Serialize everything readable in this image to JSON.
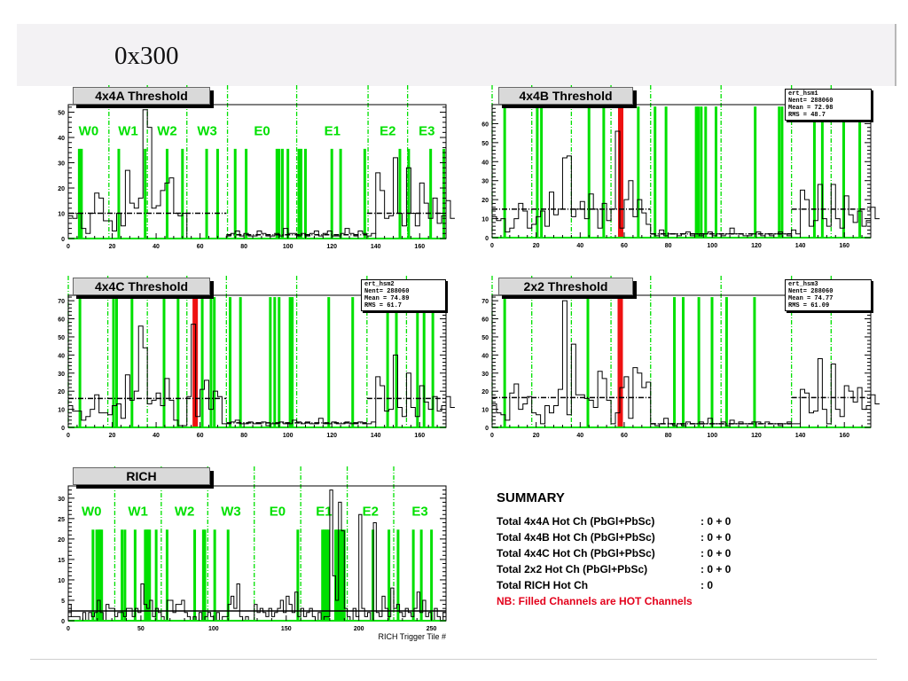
{
  "header": {
    "title": "0x300"
  },
  "colors": {
    "hot": "#00e000",
    "red": "#ee1111",
    "line": "#000000"
  },
  "chart_data": [
    {
      "id": "a",
      "type": "histogram",
      "title": "4x4A Threshold",
      "xlim": [
        0,
        172
      ],
      "ylim": [
        0,
        53
      ],
      "xticks": [
        0,
        20,
        40,
        60,
        80,
        100,
        120,
        140,
        160
      ],
      "yticks": [
        0,
        10,
        20,
        30,
        40,
        50
      ],
      "bin_width": 2,
      "values": [
        9,
        8,
        10,
        4,
        2,
        10,
        18,
        16,
        7,
        7,
        3,
        10,
        5,
        27,
        14,
        12,
        16,
        51,
        44,
        12,
        13,
        19,
        22,
        24,
        10,
        9,
        10,
        0,
        0,
        0,
        0,
        0,
        0,
        0,
        0,
        0,
        1,
        2,
        3,
        1,
        2,
        1,
        1,
        3,
        2,
        1,
        1,
        2,
        1,
        4,
        2,
        2,
        1,
        2,
        1,
        2,
        3,
        1,
        2,
        3,
        1,
        1,
        2,
        4,
        2,
        1,
        3,
        2,
        1,
        2,
        26,
        19,
        8,
        9,
        32,
        10,
        5,
        28,
        10,
        5,
        22,
        14,
        8,
        16,
        6,
        9,
        15,
        8
      ],
      "mean_segments": [
        [
          0,
          72,
          10
        ],
        [
          72,
          136,
          1.5
        ],
        [
          136,
          172,
          10
        ]
      ],
      "dividers": [
        18.5,
        36,
        54,
        72.5,
        104,
        136.5,
        154.5
      ],
      "sector_labels": [
        "W0",
        "W1",
        "W2",
        "W3",
        "E0",
        "E1",
        "E2",
        "E3"
      ],
      "sector_label_y": 43,
      "hot_height": 35.5,
      "hot_channels": [
        5,
        6,
        23,
        35,
        45,
        52,
        63,
        68,
        76,
        81,
        95,
        96,
        97.5,
        100,
        105,
        106,
        108,
        120,
        124,
        135,
        151,
        155,
        165,
        171
      ],
      "red_channels": []
    },
    {
      "id": "b",
      "type": "histogram",
      "title": "4x4B Threshold",
      "xlim": [
        0,
        172
      ],
      "ylim": [
        0,
        70
      ],
      "xticks": [
        0,
        20,
        40,
        60,
        80,
        100,
        120,
        140,
        160
      ],
      "yticks": [
        0,
        10,
        20,
        30,
        40,
        50,
        60
      ],
      "bin_width": 2,
      "values": [
        11,
        9,
        10,
        3,
        5,
        10,
        18,
        14,
        5,
        7,
        11,
        14,
        6,
        24,
        12,
        15,
        42,
        43,
        11,
        15,
        19,
        10,
        23,
        15,
        5,
        18,
        9,
        15,
        56,
        5,
        20,
        30,
        11,
        20,
        13,
        7,
        2,
        1,
        4,
        1,
        2,
        2,
        1,
        2,
        3,
        1,
        2,
        1,
        2,
        3,
        1,
        2,
        1,
        2,
        5,
        2,
        2,
        1,
        1,
        2,
        3,
        1,
        2,
        1,
        2,
        3,
        2,
        1,
        4,
        2,
        25,
        20,
        6,
        9,
        28,
        10,
        6,
        28,
        10,
        5,
        22,
        12,
        8,
        14,
        6,
        9,
        16,
        10
      ],
      "mean_segments": [
        [
          0,
          72,
          15
        ],
        [
          72,
          136,
          2
        ],
        [
          136,
          172,
          15
        ]
      ],
      "dividers": [
        0,
        18,
        36,
        54,
        72,
        104,
        136,
        154
      ],
      "sector_labels": [],
      "hot_height": 69,
      "hot_channels": [
        5.7,
        20.5,
        22.4,
        44,
        50.7,
        66.4,
        74,
        79,
        92.7,
        93.7,
        95,
        97,
        101.7,
        119.5,
        130.4,
        131.7,
        146.4,
        150,
        159.7,
        167
      ],
      "red_channels": [
        58.4
      ],
      "stats": {
        "name": "ert_hsm1",
        "entries": "Nent= 288060",
        "mean": "Mean = 72.98",
        "rms": "RMS  = 48.7"
      }
    },
    {
      "id": "c",
      "type": "histogram",
      "title": "4x4C Threshold",
      "xlim": [
        0,
        172
      ],
      "ylim": [
        0,
        73
      ],
      "xticks": [
        0,
        20,
        40,
        60,
        80,
        100,
        120,
        140,
        160
      ],
      "yticks": [
        0,
        10,
        20,
        30,
        40,
        50,
        60,
        70
      ],
      "bin_width": 2,
      "values": [
        12,
        9,
        9,
        4,
        6,
        10,
        18,
        8,
        8,
        7,
        12,
        13,
        5,
        29,
        15,
        20,
        56,
        44,
        13,
        15,
        19,
        12,
        27,
        15,
        4,
        1,
        1,
        17,
        57,
        6,
        21,
        26,
        10,
        20,
        17,
        2,
        2,
        3,
        4,
        2,
        2,
        3,
        2,
        2,
        3,
        1,
        2,
        2,
        3,
        2,
        2,
        4,
        3,
        2,
        3,
        2,
        2,
        5,
        2,
        2,
        3,
        2,
        2,
        3,
        2,
        2,
        3,
        2,
        2,
        3,
        28,
        23,
        9,
        10,
        40,
        11,
        6,
        30,
        11,
        6,
        23,
        14,
        10,
        17,
        9,
        12,
        17,
        11
      ],
      "mean_segments": [
        [
          0,
          72,
          16
        ],
        [
          72,
          136,
          2.5
        ],
        [
          136,
          172,
          16
        ]
      ],
      "dividers": [
        0,
        18,
        36,
        54,
        72,
        104,
        136,
        154
      ],
      "sector_labels": [],
      "hot_height": 72,
      "hot_channels": [
        5.3,
        20.6,
        22,
        29,
        43.6,
        50,
        61,
        65,
        66.5,
        73.7,
        78.4,
        92,
        94,
        96,
        101,
        102,
        118.6,
        129.5,
        145.4,
        149.4,
        159,
        162,
        166
      ],
      "red_channels": [
        57.8
      ],
      "stats": {
        "name": "ert_hsm2",
        "entries": "Nent= 288060",
        "mean": "Mean = 74.89",
        "rms": "RMS  = 61.7"
      }
    },
    {
      "id": "d",
      "type": "histogram",
      "title": "2x2 Threshold",
      "xlim": [
        0,
        172
      ],
      "ylim": [
        0,
        73
      ],
      "xticks": [
        0,
        20,
        40,
        60,
        80,
        100,
        120,
        140,
        160
      ],
      "yticks": [
        0,
        10,
        20,
        30,
        40,
        50,
        60,
        70
      ],
      "bin_width": 2,
      "values": [
        13,
        8,
        7,
        4,
        19,
        24,
        10,
        13,
        17,
        8,
        7,
        2,
        12,
        8,
        12,
        21,
        70,
        7,
        46,
        18,
        18,
        16,
        15,
        11,
        31,
        27,
        15,
        2,
        8,
        22,
        28,
        5,
        33,
        30,
        22,
        25,
        2,
        1,
        2,
        5,
        2,
        1,
        2,
        1,
        3,
        2,
        2,
        3,
        2,
        5,
        2,
        2,
        3,
        1,
        4,
        2,
        3,
        2,
        2,
        3,
        3,
        2,
        3,
        2,
        2,
        1,
        2,
        3,
        2,
        2,
        21,
        19,
        8,
        9,
        38,
        10,
        2,
        35,
        10,
        6,
        23,
        20,
        14,
        22,
        10,
        12,
        18,
        13
      ],
      "mean_segments": [
        [
          0,
          72,
          16.5
        ],
        [
          72,
          136,
          2
        ],
        [
          136,
          172,
          16.5
        ]
      ],
      "dividers": [
        0,
        18,
        36,
        54,
        72,
        104,
        136,
        154
      ],
      "sector_labels": [],
      "hot_height": 72,
      "hot_channels": [
        5.7,
        43.5,
        82.8,
        86.8,
        93.9,
        99.9,
        106.5,
        119.2
      ],
      "red_channels": [
        58.2
      ],
      "stats": {
        "name": "ert_hsm3",
        "entries": "Nent= 288060",
        "mean": "Mean = 74.77",
        "rms": "RMS  = 61.09"
      }
    },
    {
      "id": "rich",
      "type": "histogram",
      "title": "RICH",
      "xlim": [
        0,
        260
      ],
      "ylim": [
        0,
        33
      ],
      "xticks": [
        0,
        50,
        100,
        150,
        200,
        250
      ],
      "yticks": [
        0,
        5,
        10,
        15,
        20,
        25,
        30
      ],
      "xlabel": "RICH Trigger Tile #",
      "bin_width": 2,
      "values": [
        4,
        1,
        1,
        1,
        0,
        2,
        0,
        2,
        1,
        2,
        5,
        2,
        0,
        4,
        3,
        3,
        1,
        2,
        2,
        1,
        3,
        3,
        1,
        3,
        2,
        9,
        4,
        3,
        5,
        1,
        3,
        2,
        1,
        0,
        5,
        5,
        2,
        4,
        4,
        5,
        2,
        1,
        0,
        1,
        0,
        2,
        0,
        1,
        2,
        1,
        0,
        2,
        0,
        1,
        1,
        4,
        6,
        3,
        9,
        1,
        0,
        1,
        0,
        0,
        4,
        2,
        3,
        2,
        1,
        3,
        1,
        2,
        3,
        5,
        2,
        6,
        4,
        2,
        7,
        1,
        3,
        1,
        2,
        3,
        1,
        0,
        2,
        0,
        1,
        1,
        32,
        11,
        5,
        29,
        22,
        3,
        1,
        0,
        3,
        1,
        26,
        3,
        1,
        2,
        0,
        24,
        2,
        1,
        6,
        3,
        1,
        8,
        3,
        4,
        2,
        1,
        3,
        2,
        1,
        3,
        7,
        2,
        5,
        1,
        2,
        0,
        3,
        1,
        0,
        2
      ],
      "mean_segments": [
        [
          0,
          260,
          2.4
        ]
      ],
      "mean_solid": true,
      "dividers": [
        32,
        64,
        96,
        128,
        160,
        192,
        224
      ],
      "sector_labels": [
        "W0",
        "W1",
        "W2",
        "W3",
        "E0",
        "E1",
        "E2",
        "E3"
      ],
      "sector_label_y": 27,
      "hot_height": 22.3,
      "hot_channels": [
        17,
        19.6,
        21,
        22,
        23,
        37,
        39,
        46,
        53,
        54,
        55,
        56,
        60.5,
        68,
        87,
        93,
        94,
        100.8,
        110,
        158,
        175,
        176,
        177,
        178,
        179,
        184,
        185,
        186,
        187,
        188,
        189,
        190,
        209.7,
        220.7,
        227,
        237.5,
        243,
        250
      ],
      "red_channels": []
    }
  ],
  "summary": {
    "heading": "SUMMARY",
    "rows": [
      {
        "label": "Total 4x4A Hot Ch (PbGl+PbSc)",
        "value": ":  0 + 0"
      },
      {
        "label": "Total 4x4B Hot Ch (PbGl+PbSc)",
        "value": ":  0 + 0"
      },
      {
        "label": "Total 4x4C Hot Ch (PbGl+PbSc)",
        "value": ":  0 + 0"
      },
      {
        "label": "Total 2x2 Hot Ch (PbGl+PbSc)",
        "value": ":  0 + 0"
      },
      {
        "label": "Total RICH Hot Ch",
        "value": ":  0"
      }
    ],
    "note": "NB: Filled Channels are HOT Channels"
  }
}
